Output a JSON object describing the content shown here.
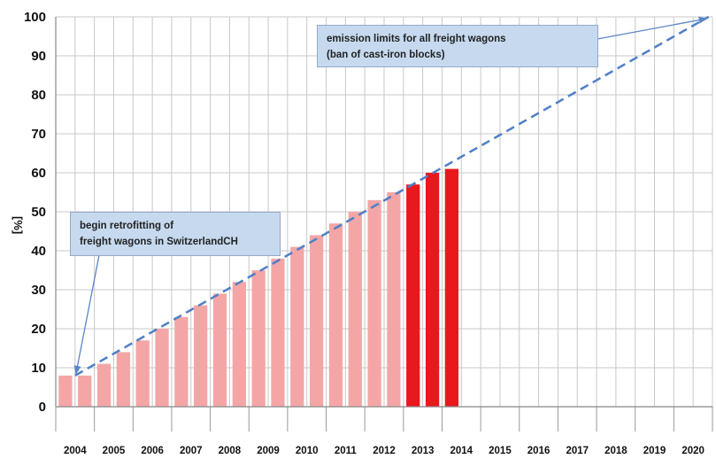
{
  "chart_data": {
    "type": "bar",
    "ylabel": "[%]",
    "ylim": [
      0,
      100
    ],
    "yticks": [
      0,
      10,
      20,
      30,
      40,
      50,
      60,
      70,
      80,
      90,
      100
    ],
    "grid": true,
    "slots_per_year": 2,
    "categories": [
      "2004",
      "2005",
      "2006",
      "2007",
      "2008",
      "2009",
      "2010",
      "2011",
      "2012",
      "2013",
      "2014",
      "2015",
      "2016",
      "2017",
      "2018",
      "2019",
      "2020"
    ],
    "bars": [
      {
        "year": "2004",
        "value": 8,
        "kind": "light"
      },
      {
        "year": "2004",
        "value": 8,
        "kind": "light"
      },
      {
        "year": "2005",
        "value": 11,
        "kind": "light"
      },
      {
        "year": "2005",
        "value": 14,
        "kind": "light"
      },
      {
        "year": "2006",
        "value": 17,
        "kind": "light"
      },
      {
        "year": "2006",
        "value": 20,
        "kind": "light"
      },
      {
        "year": "2007",
        "value": 23,
        "kind": "light"
      },
      {
        "year": "2007",
        "value": 26,
        "kind": "light"
      },
      {
        "year": "2008",
        "value": 29,
        "kind": "light"
      },
      {
        "year": "2008",
        "value": 32,
        "kind": "light"
      },
      {
        "year": "2009",
        "value": 35,
        "kind": "light"
      },
      {
        "year": "2009",
        "value": 38,
        "kind": "light"
      },
      {
        "year": "2010",
        "value": 41,
        "kind": "light"
      },
      {
        "year": "2010",
        "value": 44,
        "kind": "light"
      },
      {
        "year": "2011",
        "value": 47,
        "kind": "light"
      },
      {
        "year": "2011",
        "value": 50,
        "kind": "light"
      },
      {
        "year": "2012",
        "value": 53,
        "kind": "light"
      },
      {
        "year": "2012",
        "value": 55,
        "kind": "light"
      },
      {
        "year": "2013",
        "value": 57,
        "kind": "dark"
      },
      {
        "year": "2013",
        "value": 60,
        "kind": "dark"
      },
      {
        "year": "2014",
        "value": 61,
        "kind": "dark"
      }
    ],
    "trend_line": {
      "from": {
        "year": "2004",
        "value": 8
      },
      "to": {
        "year": "2020",
        "value": 100
      },
      "style": "dashed"
    },
    "annotations": [
      {
        "lines": [
          "begin  retrofitting of",
          "freight wagons in SwitzerlandCH"
        ],
        "arrow_to": {
          "year": "2004",
          "value": 8
        }
      },
      {
        "lines": [
          "emission limits for  all freight wagons",
          "(ban of cast-iron blocks)"
        ],
        "arrow_to": {
          "year": "2020",
          "value": 100
        }
      }
    ]
  },
  "colors": {
    "bar_light": "#f4a6a6",
    "bar_dark": "#e8181c",
    "trend": "#4f7fc8",
    "grid": "#c8c8c8",
    "note_fill": "#c6d9ef",
    "arrow": "#5b86c5"
  }
}
